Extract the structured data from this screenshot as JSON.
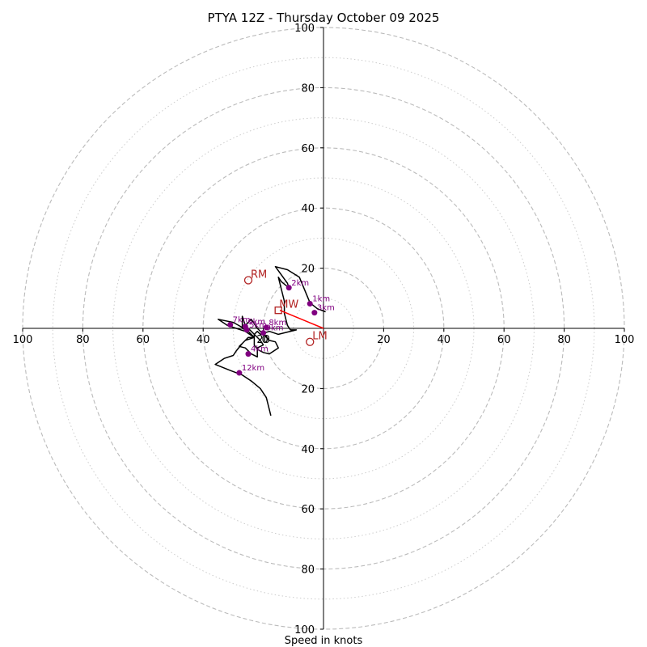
{
  "chart_data": {
    "type": "hodograph",
    "title": "PTYA 12Z - Thursday October 09 2025",
    "xlabel": "Speed in knots",
    "ylabel": "",
    "range": [
      -100,
      100
    ],
    "ring_values_major": [
      20,
      40,
      60,
      80,
      100
    ],
    "ring_values_minor": [
      10,
      30,
      50,
      70,
      90
    ],
    "tick_labels": {
      "left": [
        "100",
        "80",
        "60",
        "40",
        "20"
      ],
      "right": [
        "20",
        "40",
        "60",
        "80",
        "100"
      ],
      "top": [
        "100",
        "80",
        "60",
        "40",
        "20"
      ],
      "bottom": [
        "20",
        "40",
        "60",
        "80",
        "100"
      ],
      "center": "0"
    },
    "trace": [
      [
        0.7,
        5.5
      ],
      [
        -2,
        6.5
      ],
      [
        -4.5,
        8.5
      ],
      [
        -8,
        17
      ],
      [
        -12,
        19.5
      ],
      [
        -16,
        20.5
      ],
      [
        -12,
        15
      ],
      [
        -11.5,
        13.5
      ],
      [
        -14,
        15.5
      ],
      [
        -15,
        17
      ],
      [
        -13,
        9
      ],
      [
        -13,
        5
      ],
      [
        -12,
        1
      ],
      [
        -11,
        -0.5
      ],
      [
        -9,
        -0.5
      ],
      [
        -15,
        -2
      ],
      [
        -18,
        -1
      ],
      [
        -21,
        -2
      ],
      [
        -22,
        -1
      ],
      [
        -23,
        -2
      ],
      [
        -23,
        -3.5
      ],
      [
        -23,
        -5.5
      ],
      [
        -22,
        -7
      ],
      [
        -20,
        -8
      ],
      [
        -18,
        -8.5
      ],
      [
        -15,
        -6.5
      ],
      [
        -16,
        -4.5
      ],
      [
        -18,
        -4
      ],
      [
        -20,
        -2
      ],
      [
        -22,
        0
      ],
      [
        -24,
        3
      ],
      [
        -26,
        1
      ],
      [
        -27,
        0.3
      ],
      [
        -30,
        2
      ],
      [
        -35,
        3
      ],
      [
        -32,
        1
      ],
      [
        -29,
        0
      ],
      [
        -26,
        -1
      ],
      [
        -23,
        -3
      ],
      [
        -25,
        -3
      ],
      [
        -26,
        -4
      ],
      [
        -27,
        -5
      ],
      [
        -28,
        -6
      ],
      [
        -26,
        -6.5
      ],
      [
        -25,
        -7.5
      ],
      [
        -24,
        -8.5
      ],
      [
        -22,
        -9.5
      ],
      [
        -22,
        -6.5
      ],
      [
        -20,
        -5.5
      ],
      [
        -21,
        -4
      ],
      [
        -23,
        -2
      ],
      [
        -24,
        -1
      ],
      [
        -25,
        0
      ],
      [
        -26,
        1
      ],
      [
        -27,
        4
      ],
      [
        -27,
        1.5
      ],
      [
        -27,
        0
      ],
      [
        -25,
        -1
      ],
      [
        -23,
        -3
      ],
      [
        -26,
        -4
      ],
      [
        -27,
        -5
      ],
      [
        -29,
        -7.5
      ],
      [
        -30,
        -9
      ],
      [
        -33,
        -10
      ],
      [
        -36,
        -12
      ],
      [
        -31,
        -14
      ],
      [
        -27,
        -15.5
      ],
      [
        -24,
        -17.5
      ],
      [
        -21,
        -20
      ],
      [
        -19,
        -23
      ],
      [
        -17.5,
        -29
      ]
    ],
    "height_markers": [
      {
        "label": "1km",
        "u": -4.5,
        "v": 8.2
      },
      {
        "label": "3km",
        "u": -3,
        "v": 5.2
      },
      {
        "label": "2km",
        "u": -11.5,
        "v": 13.5
      },
      {
        "label": "7km",
        "u": -31,
        "v": 1.2
      },
      {
        "label": "6km",
        "u": -26,
        "v": 0.6
      },
      {
        "label": "5km",
        "u": -25.5,
        "v": -0.5
      },
      {
        "label": "8km",
        "u": -19,
        "v": 0.3
      },
      {
        "label": "9km",
        "u": -20,
        "v": -1.5
      },
      {
        "label": "4km",
        "u": -25,
        "v": -8.5
      },
      {
        "label": "12km",
        "u": -28,
        "v": -14.8
      }
    ],
    "motion": {
      "RM": {
        "label": "RM",
        "u": -25,
        "v": 16
      },
      "LM": {
        "label": "LM",
        "u": -4.5,
        "v": -4.5
      },
      "MW": {
        "label": "MW",
        "u": -15,
        "v": 6
      },
      "mean_wind_vector": [
        [
          0,
          0
        ],
        [
          -14.5,
          6
        ]
      ]
    },
    "colors": {
      "trace": "#000000",
      "markers": "#800080",
      "motion": "#b22222",
      "mean_wind": "#ff0000",
      "grid": "#bbbbbb"
    }
  }
}
